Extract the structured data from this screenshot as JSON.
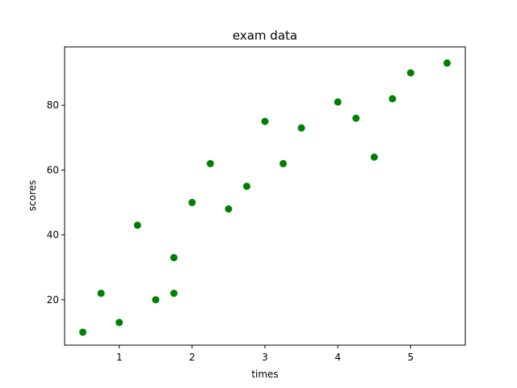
{
  "chart_data": {
    "type": "scatter",
    "title": "exam data",
    "xlabel": "times",
    "ylabel": "scores",
    "xlim": [
      0.25,
      5.75
    ],
    "ylim": [
      6,
      98
    ],
    "xticks": [
      1,
      2,
      3,
      4,
      5
    ],
    "xtick_labels": [
      "1",
      "2",
      "3",
      "4",
      "5"
    ],
    "yticks": [
      20,
      40,
      60,
      80
    ],
    "ytick_labels": [
      "20",
      "40",
      "60",
      "80"
    ],
    "grid": false,
    "legend": "none",
    "marker_color": "#008000",
    "series": [
      {
        "x": [
          0.5,
          0.75,
          1.0,
          1.25,
          1.5,
          1.75,
          1.75,
          2.0,
          2.25,
          2.5,
          2.75,
          3.0,
          3.25,
          3.5,
          4.0,
          4.25,
          4.5,
          4.75,
          5.0,
          5.5
        ],
        "y": [
          10,
          22,
          13,
          43,
          20,
          22,
          33,
          50,
          62,
          48,
          55,
          75,
          62,
          73,
          81,
          76,
          64,
          82,
          90,
          93
        ]
      }
    ]
  }
}
